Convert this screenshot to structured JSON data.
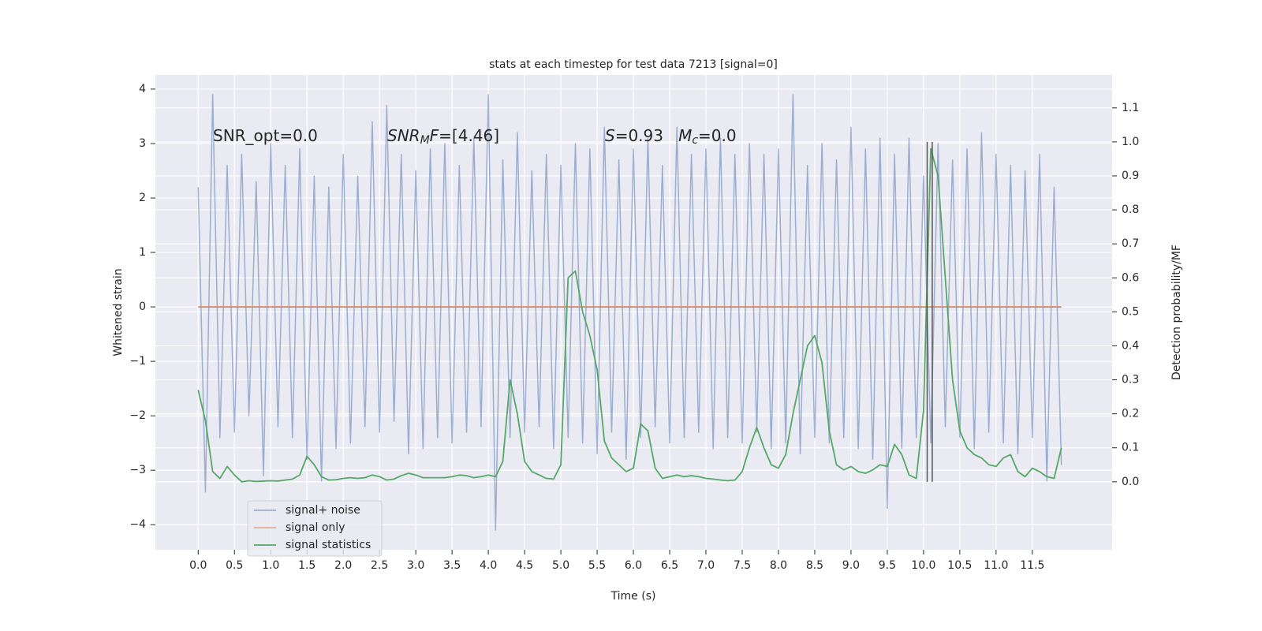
{
  "chart_data": {
    "type": "line",
    "title": "stats at each timestep for test data 7213 [signal=0]",
    "xlabel": "Time (s)",
    "ylabel": "Whitened strain",
    "y2label": "Detection probability/MF",
    "annotations": [
      [
        {
          "text": "SNR_opt=0.0"
        }
      ],
      [
        {
          "text": "SNR",
          "italic": true
        },
        {
          "text": "M",
          "italic": true,
          "sub": true
        },
        {
          "text": "F",
          "italic": true
        },
        {
          "text": "=[4.46]"
        }
      ],
      [
        {
          "text": "S",
          "italic": true
        },
        {
          "text": "=0.93   "
        },
        {
          "text": "M",
          "italic": true
        },
        {
          "text": "c",
          "italic": true,
          "sub": true
        },
        {
          "text": "=0.0"
        }
      ]
    ],
    "x": [
      0.0,
      0.1,
      0.2,
      0.3,
      0.4,
      0.5,
      0.6,
      0.7,
      0.8,
      0.9,
      1.0,
      1.1,
      1.2,
      1.3,
      1.4,
      1.5,
      1.6,
      1.7,
      1.8,
      1.9,
      2.0,
      2.1,
      2.2,
      2.3,
      2.4,
      2.5,
      2.6,
      2.7,
      2.8,
      2.9,
      3.0,
      3.1,
      3.2,
      3.3,
      3.4,
      3.5,
      3.6,
      3.7,
      3.8,
      3.9,
      4.0,
      4.1,
      4.2,
      4.3,
      4.4,
      4.5,
      4.6,
      4.7,
      4.8,
      4.9,
      5.0,
      5.1,
      5.2,
      5.3,
      5.4,
      5.5,
      5.6,
      5.7,
      5.8,
      5.9,
      6.0,
      6.1,
      6.2,
      6.3,
      6.4,
      6.5,
      6.6,
      6.7,
      6.8,
      6.9,
      7.0,
      7.1,
      7.2,
      7.3,
      7.4,
      7.5,
      7.6,
      7.7,
      7.8,
      7.9,
      8.0,
      8.1,
      8.2,
      8.3,
      8.4,
      8.5,
      8.6,
      8.7,
      8.8,
      8.9,
      9.0,
      9.1,
      9.2,
      9.3,
      9.4,
      9.5,
      9.6,
      9.7,
      9.8,
      9.9,
      10.0,
      10.1,
      10.2,
      10.3,
      10.4,
      10.5,
      10.6,
      10.7,
      10.8,
      10.9,
      11.0,
      11.1,
      11.2,
      11.3,
      11.4,
      11.5,
      11.6,
      11.7,
      11.8,
      11.9
    ],
    "series": [
      {
        "name": "signal+ noise",
        "color": "#4c72b0",
        "opacity": 0.5,
        "values": [
          2.2,
          -3.4,
          3.9,
          -2.4,
          2.6,
          -2.3,
          2.8,
          -2.0,
          2.3,
          -3.1,
          3.0,
          -2.2,
          2.6,
          -2.4,
          2.9,
          -2.8,
          2.4,
          -3.2,
          2.2,
          -2.6,
          2.8,
          -2.5,
          2.4,
          -2.2,
          3.4,
          -2.3,
          3.7,
          -2.1,
          2.8,
          -2.7,
          2.5,
          -2.6,
          2.9,
          -2.4,
          3.0,
          -2.5,
          2.6,
          -2.3,
          3.1,
          -2.2,
          3.9,
          -4.1,
          2.7,
          -2.4,
          3.2,
          -2.3,
          2.5,
          -2.2,
          2.8,
          -2.6,
          2.6,
          -2.4,
          3.0,
          -2.5,
          2.9,
          -2.7,
          3.3,
          -2.3,
          2.7,
          -2.8,
          2.9,
          -2.4,
          3.1,
          -2.2,
          2.6,
          -2.5,
          3.3,
          -2.4,
          2.8,
          -2.3,
          2.9,
          -2.6,
          3.1,
          -2.4,
          2.8,
          -2.5,
          3.0,
          -2.3,
          2.8,
          -2.6,
          2.9,
          -2.5,
          3.9,
          -2.7,
          2.6,
          -2.4,
          3.0,
          -2.5,
          2.7,
          -2.4,
          3.3,
          -2.6,
          2.9,
          -2.8,
          3.1,
          -3.7,
          2.8,
          -2.6,
          3.1,
          -2.4,
          2.4,
          -2.5,
          3.0,
          -2.2,
          2.7,
          -2.4,
          2.9,
          -2.6,
          3.2,
          -2.3,
          2.8,
          -2.5,
          2.6,
          -2.7,
          2.5,
          -2.4,
          2.8,
          -3.2,
          2.2,
          -2.9
        ]
      },
      {
        "name": "signal only",
        "color": "#dd8452",
        "values": [
          0,
          0,
          0,
          0,
          0,
          0,
          0,
          0,
          0,
          0,
          0,
          0,
          0,
          0,
          0,
          0,
          0,
          0,
          0,
          0,
          0,
          0,
          0,
          0,
          0,
          0,
          0,
          0,
          0,
          0,
          0,
          0,
          0,
          0,
          0,
          0,
          0,
          0,
          0,
          0,
          0,
          0,
          0,
          0,
          0,
          0,
          0,
          0,
          0,
          0,
          0,
          0,
          0,
          0,
          0,
          0,
          0,
          0,
          0,
          0,
          0,
          0,
          0,
          0,
          0,
          0,
          0,
          0,
          0,
          0,
          0,
          0,
          0,
          0,
          0,
          0,
          0,
          0,
          0,
          0,
          0,
          0,
          0,
          0,
          0,
          0,
          0,
          0,
          0,
          0,
          0,
          0,
          0,
          0,
          0,
          0,
          0,
          0,
          0,
          0,
          0,
          0,
          0,
          0,
          0,
          0,
          0,
          0,
          0,
          0,
          0,
          0,
          0,
          0,
          0,
          0,
          0,
          0,
          0,
          0
        ]
      },
      {
        "name": "signal statistics",
        "color": "#55a868",
        "axis": "y2",
        "values": [
          0.27,
          0.18,
          0.03,
          0.01,
          0.045,
          0.02,
          0.0,
          0.003,
          0.001,
          0.002,
          0.003,
          0.002,
          0.005,
          0.008,
          0.02,
          0.075,
          0.05,
          0.015,
          0.005,
          0.006,
          0.01,
          0.012,
          0.01,
          0.012,
          0.02,
          0.015,
          0.005,
          0.008,
          0.018,
          0.025,
          0.02,
          0.012,
          0.012,
          0.012,
          0.012,
          0.015,
          0.02,
          0.018,
          0.012,
          0.015,
          0.02,
          0.015,
          0.06,
          0.3,
          0.2,
          0.06,
          0.03,
          0.02,
          0.01,
          0.008,
          0.05,
          0.6,
          0.62,
          0.5,
          0.43,
          0.33,
          0.12,
          0.07,
          0.05,
          0.03,
          0.04,
          0.17,
          0.15,
          0.04,
          0.01,
          0.015,
          0.02,
          0.015,
          0.018,
          0.015,
          0.01,
          0.008,
          0.005,
          0.003,
          0.005,
          0.03,
          0.1,
          0.16,
          0.1,
          0.05,
          0.04,
          0.08,
          0.2,
          0.3,
          0.4,
          0.43,
          0.35,
          0.15,
          0.05,
          0.035,
          0.045,
          0.03,
          0.025,
          0.035,
          0.05,
          0.045,
          0.11,
          0.08,
          0.02,
          0.01,
          0.21,
          0.98,
          0.9,
          0.6,
          0.3,
          0.15,
          0.1,
          0.08,
          0.07,
          0.05,
          0.045,
          0.07,
          0.08,
          0.03,
          0.015,
          0.04,
          0.03,
          0.015,
          0.01,
          0.1
        ]
      }
    ],
    "vlines": {
      "x": [
        10.05,
        10.12
      ],
      "y2min": 0,
      "y2max": 1,
      "color": "#555555"
    },
    "xlim": [
      -0.59,
      12.6
    ],
    "xticks": [
      {
        "value": 0,
        "label": "0.0"
      },
      0.5,
      {
        "value": 1,
        "label": "1.0"
      },
      1.5,
      {
        "value": 2,
        "label": "2.0"
      },
      2.5,
      {
        "value": 3,
        "label": "3.0"
      },
      3.5,
      {
        "value": 4,
        "label": "4.0"
      },
      4.5,
      {
        "value": 5,
        "label": "5.0"
      },
      5.5,
      {
        "value": 6,
        "label": "6.0"
      },
      6.5,
      {
        "value": 7,
        "label": "7.0"
      },
      7.5,
      {
        "value": 8,
        "label": "8.0"
      },
      8.5,
      {
        "value": 9,
        "label": "9.0"
      },
      9.5,
      {
        "value": 10,
        "label": "10.0"
      },
      10.5,
      {
        "value": 11,
        "label": "11.0"
      },
      11.5
    ],
    "ylim": [
      -4.46,
      4.26
    ],
    "yticks": [
      {
        "value": -4,
        "label": "−4"
      },
      {
        "value": -3,
        "label": "−3"
      },
      {
        "value": -2,
        "label": "−2"
      },
      {
        "value": -1,
        "label": "−1"
      },
      0,
      1,
      2,
      3,
      4
    ],
    "y2lim": [
      -0.2,
      1.197
    ],
    "y2ticks": [
      {
        "value": 0,
        "label": "0.0"
      },
      0.1,
      0.2,
      0.3,
      0.4,
      0.5,
      0.6,
      0.7,
      0.8,
      0.9,
      {
        "value": 1,
        "label": "1.0"
      },
      1.1
    ],
    "grid": true,
    "legend": "lower left"
  }
}
